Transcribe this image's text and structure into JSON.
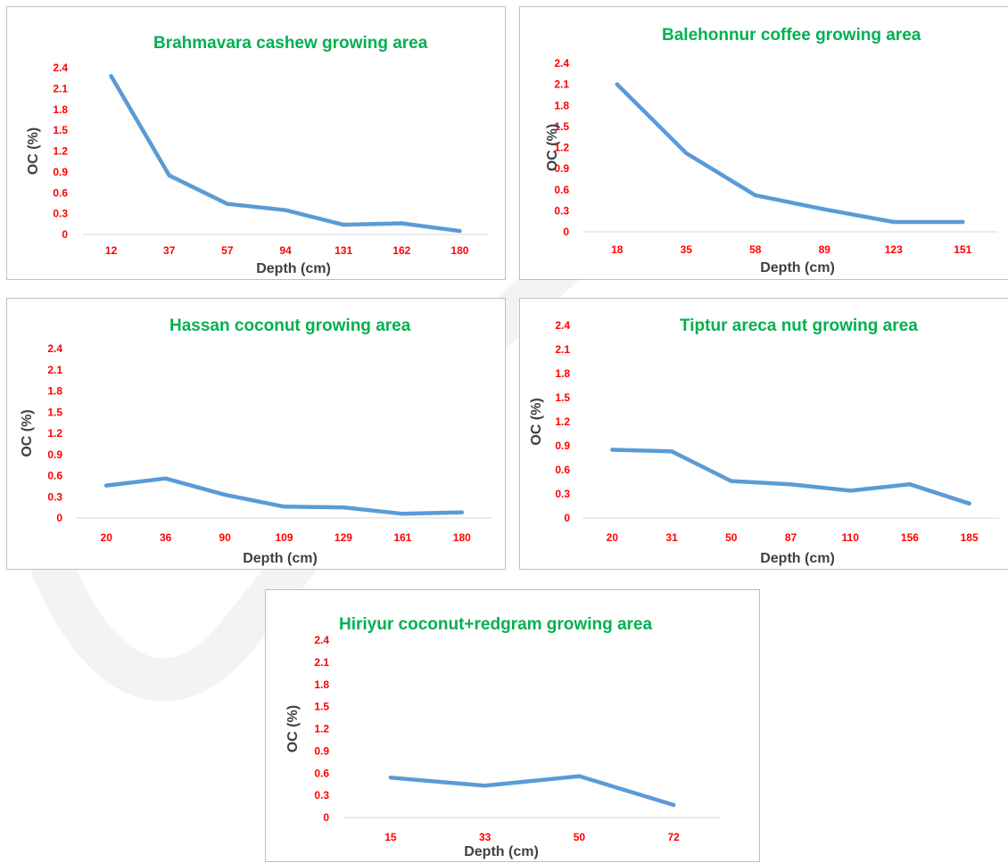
{
  "chart_data": [
    {
      "type": "line",
      "title": "Brahmavara cashew growing area",
      "xlabel": "Depth (cm)",
      "ylabel": "OC (%)",
      "categories": [
        "12",
        "37",
        "57",
        "94",
        "131",
        "162",
        "180"
      ],
      "values": [
        2.28,
        0.85,
        0.44,
        0.35,
        0.14,
        0.16,
        0.05
      ],
      "ylim": [
        0,
        2.4
      ],
      "yticks": [
        "0",
        "0.3",
        "0.6",
        "0.9",
        "1.2",
        "1.5",
        "1.8",
        "2.1",
        "2.4"
      ],
      "grid": false,
      "line_color": "#5b9bd5"
    },
    {
      "type": "line",
      "title": "Balehonnur coffee growing area",
      "xlabel": "Depth (cm)",
      "ylabel": "OC (%)",
      "categories": [
        "18",
        "35",
        "58",
        "89",
        "123",
        "151"
      ],
      "values": [
        2.1,
        1.12,
        0.52,
        0.32,
        0.14,
        0.14
      ],
      "ylim": [
        0,
        2.4
      ],
      "yticks": [
        "0",
        "0.3",
        "0.6",
        "0.9",
        "1.2",
        "1.5",
        "1.8",
        "2.1",
        "2.4"
      ],
      "grid": false,
      "line_color": "#5b9bd5"
    },
    {
      "type": "line",
      "title": "Hassan coconut growing area",
      "xlabel": "Depth (cm)",
      "ylabel": "OC (%)",
      "categories": [
        "20",
        "36",
        "90",
        "109",
        "129",
        "161",
        "180"
      ],
      "values": [
        0.46,
        0.56,
        0.33,
        0.16,
        0.15,
        0.06,
        0.08
      ],
      "ylim": [
        0,
        2.4
      ],
      "yticks": [
        "0",
        "0.3",
        "0.6",
        "0.9",
        "1.2",
        "1.5",
        "1.8",
        "2.1",
        "2.4"
      ],
      "grid": false,
      "line_color": "#5b9bd5"
    },
    {
      "type": "line",
      "title": "Tiptur areca nut growing area",
      "xlabel": "Depth (cm)",
      "ylabel": "OC (%)",
      "categories": [
        "20",
        "31",
        "50",
        "87",
        "110",
        "156",
        "185"
      ],
      "values": [
        0.85,
        0.83,
        0.46,
        0.42,
        0.34,
        0.42,
        0.18
      ],
      "ylim": [
        0,
        2.4
      ],
      "yticks": [
        "0",
        "0.3",
        "0.6",
        "0.9",
        "1.2",
        "1.5",
        "1.8",
        "2.1",
        "2.4"
      ],
      "grid": false,
      "line_color": "#5b9bd5"
    },
    {
      "type": "line",
      "title": "Hiriyur coconut+redgram growing area",
      "xlabel": "Depth (cm)",
      "ylabel": "OC (%)",
      "categories": [
        "15",
        "33",
        "50",
        "72"
      ],
      "values": [
        0.54,
        0.43,
        0.56,
        0.17
      ],
      "ylim": [
        0,
        2.4
      ],
      "yticks": [
        "0",
        "0.3",
        "0.6",
        "0.9",
        "1.2",
        "1.5",
        "1.8",
        "2.1",
        "2.4"
      ],
      "grid": false,
      "line_color": "#5b9bd5"
    }
  ]
}
